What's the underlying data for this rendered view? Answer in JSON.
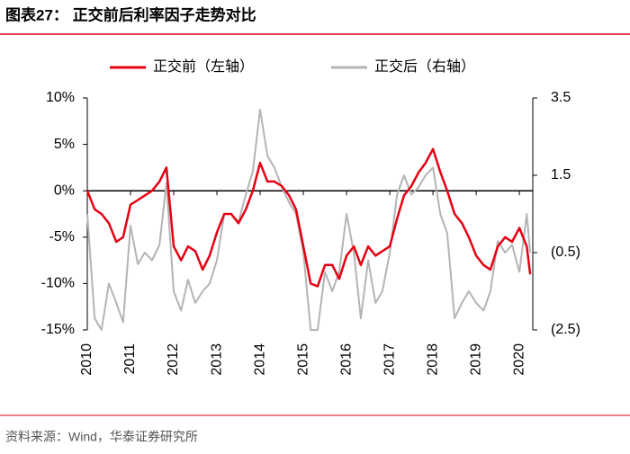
{
  "title": "图表27：  正交前后利率因子走势对比",
  "source": "资料来源：Wind，华泰证券研究所",
  "chart_data": {
    "type": "line",
    "x": [
      2010.0,
      2010.17,
      2010.33,
      2010.5,
      2010.67,
      2010.83,
      2011.0,
      2011.17,
      2011.33,
      2011.5,
      2011.67,
      2011.83,
      2012.0,
      2012.17,
      2012.33,
      2012.5,
      2012.67,
      2012.83,
      2013.0,
      2013.17,
      2013.33,
      2013.5,
      2013.67,
      2013.83,
      2014.0,
      2014.17,
      2014.33,
      2014.5,
      2014.67,
      2014.83,
      2015.0,
      2015.17,
      2015.33,
      2015.5,
      2015.67,
      2015.83,
      2016.0,
      2016.17,
      2016.33,
      2016.5,
      2016.67,
      2016.83,
      2017.0,
      2017.17,
      2017.33,
      2017.5,
      2017.67,
      2017.83,
      2018.0,
      2018.17,
      2018.33,
      2018.5,
      2018.67,
      2018.83,
      2019.0,
      2019.17,
      2019.33,
      2019.5,
      2019.67,
      2019.83,
      2020.0,
      2020.17,
      2020.25
    ],
    "series": [
      {
        "name": "正交前（左轴）",
        "color": "#e60012",
        "axis": "y",
        "values": [
          0,
          -2,
          -2.5,
          -3.5,
          -5.5,
          -5,
          -1.5,
          -1,
          -0.5,
          0,
          1,
          2.5,
          -6,
          -7.5,
          -6,
          -6.5,
          -8.5,
          -7,
          -4.5,
          -2.5,
          -2.5,
          -3.5,
          -2,
          0,
          3,
          1,
          1,
          0.5,
          -0.5,
          -2,
          -6,
          -10,
          -10.3,
          -8,
          -8,
          -9.5,
          -7,
          -6,
          -8,
          -6,
          -7,
          -6.5,
          -6,
          -3,
          -0.5,
          0.5,
          2,
          3,
          4.5,
          2,
          0,
          -2.5,
          -3.5,
          -5,
          -7,
          -8,
          -8.5,
          -6,
          -5,
          -5.5,
          -4,
          -6,
          -9
        ]
      },
      {
        "name": "正交后（右轴）",
        "color": "#b4b4b4",
        "axis": "y2",
        "values": [
          0.5,
          -2.2,
          -2.5,
          -1.3,
          -1.8,
          -2.3,
          0.2,
          -0.8,
          -0.5,
          -0.7,
          -0.3,
          1.3,
          -1.5,
          -2,
          -1.2,
          -1.8,
          -1.5,
          -1.3,
          -0.7,
          0.5,
          0.5,
          0.3,
          1.0,
          1.6,
          3.2,
          2.0,
          1.7,
          1.2,
          0.8,
          0.5,
          -0.5,
          -2.5,
          -2.5,
          -1.0,
          -1.5,
          -1.0,
          0.5,
          -0.5,
          -2.2,
          -0.7,
          -1.8,
          -1.5,
          -0.5,
          1.0,
          1.5,
          1.0,
          1.2,
          1.5,
          1.7,
          0.5,
          0,
          -2.2,
          -1.8,
          -1.5,
          -1.8,
          -2.0,
          -1.5,
          -0.2,
          -0.5,
          -0.3,
          -1.0,
          0.5,
          -0.5
        ]
      }
    ],
    "xlim": [
      2010,
      2020.31
    ],
    "xticks": [
      2010,
      2011,
      2012,
      2013,
      2014,
      2015,
      2016,
      2017,
      2018,
      2019,
      2020
    ],
    "ylim": [
      -15,
      10
    ],
    "yticks": [
      {
        "value": -15,
        "label": "-15%"
      },
      {
        "value": -10,
        "label": "-10%"
      },
      {
        "value": -5,
        "label": "-5%"
      },
      {
        "value": 0,
        "label": "0%"
      },
      {
        "value": 5,
        "label": "5%"
      },
      {
        "value": 10,
        "label": "10%"
      }
    ],
    "y2lim": [
      -2.5,
      3.5
    ],
    "y2ticks": [
      {
        "value": -2.5,
        "label": "(2.5)"
      },
      {
        "value": -0.5,
        "label": "(0.5)"
      },
      1.5,
      3.5
    ]
  }
}
